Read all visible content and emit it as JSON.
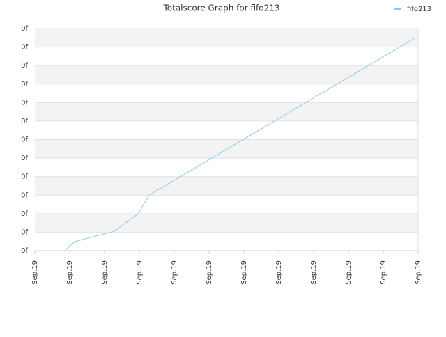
{
  "chart_data": {
    "type": "line",
    "title": "Totalscore Graph for fifo213",
    "x": [
      0.86,
      1.14,
      2.28,
      2.96,
      3.28,
      10.92
    ],
    "series": [
      {
        "name": "fifo213",
        "color": "#90c8f0",
        "values": [
          0,
          0.49,
          1.05,
          1.99,
          3.0,
          11.5
        ]
      }
    ],
    "xlim": [
      0,
      11
    ],
    "xticks": [
      {
        "value": 0,
        "label": "Sep.19"
      },
      {
        "value": 1,
        "label": "Sep.19"
      },
      {
        "value": 2,
        "label": "Sep.19"
      },
      {
        "value": 3,
        "label": "Sep.19"
      },
      {
        "value": 4,
        "label": "Sep.19"
      },
      {
        "value": 5,
        "label": "Sep.19"
      },
      {
        "value": 6,
        "label": "Sep.19"
      },
      {
        "value": 7,
        "label": "Sep.19"
      },
      {
        "value": 8,
        "label": "Sep.19"
      },
      {
        "value": 9,
        "label": "Sep.19"
      },
      {
        "value": 10,
        "label": "Sep.19"
      },
      {
        "value": 11,
        "label": "Sep.19"
      }
    ],
    "ylim": [
      0,
      12
    ],
    "yticks": [
      {
        "value": 0,
        "label": "0f"
      },
      {
        "value": 1,
        "label": "0f"
      },
      {
        "value": 2,
        "label": "0f"
      },
      {
        "value": 3,
        "label": "0f"
      },
      {
        "value": 4,
        "label": "0f"
      },
      {
        "value": 5,
        "label": "0f"
      },
      {
        "value": 6,
        "label": "0f"
      },
      {
        "value": 7,
        "label": "0f"
      },
      {
        "value": 8,
        "label": "0f"
      },
      {
        "value": 9,
        "label": "0f"
      },
      {
        "value": 10,
        "label": "0f"
      },
      {
        "value": 11,
        "label": "0f"
      },
      {
        "value": 12,
        "label": "0f"
      }
    ],
    "grid": true,
    "legend": "top-right"
  }
}
